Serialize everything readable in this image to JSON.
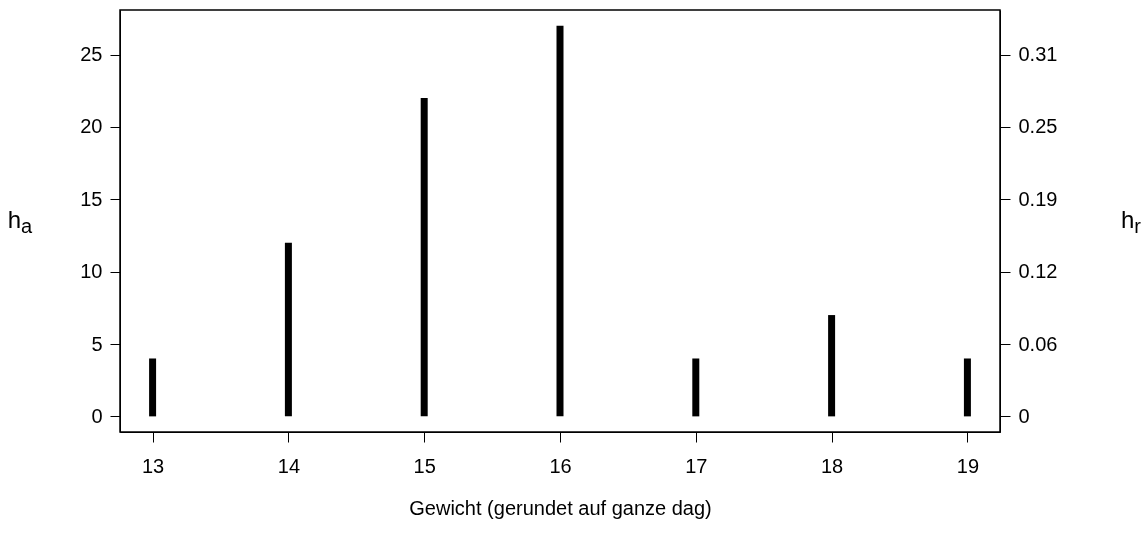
{
  "chart_data": {
    "type": "bar",
    "xlabel": "Gewicht (gerundet auf ganze dag)",
    "ylabel": "h$_{a}$",
    "y2label": "h$_{r}$",
    "x": [
      13,
      14,
      15,
      16,
      17,
      18,
      19
    ],
    "values": [
      4,
      12,
      22,
      27,
      4,
      7,
      4
    ],
    "color": "#000000",
    "xlim": [
      12.76,
      19.24
    ],
    "xticks": [
      13,
      14,
      15,
      16,
      17,
      18,
      19
    ],
    "ylim": [
      -1.08,
      28.08
    ],
    "yticks": [
      0,
      5,
      10,
      15,
      20,
      25
    ],
    "y2lim": [
      -0.0135,
      0.351
    ],
    "y2ticks": [
      0,
      {
        "value": 0.0625,
        "label": "0.06"
      },
      {
        "value": 0.125,
        "label": "0.12"
      },
      {
        "value": 0.1875,
        "label": "0.19"
      },
      {
        "value": 0.25,
        "label": "0.25"
      },
      {
        "value": 0.3125,
        "label": "0.31"
      }
    ],
    "grid": false
  }
}
